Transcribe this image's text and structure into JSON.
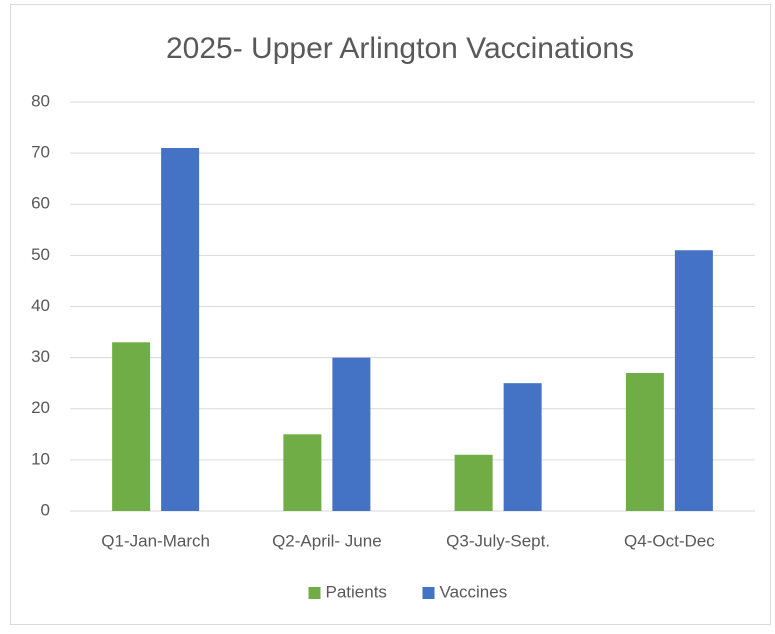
{
  "chart_data": {
    "type": "bar",
    "title": "2025- Upper Arlington Vaccinations",
    "categories": [
      "Q1-Jan-March",
      "Q2-April- June",
      "Q3-July-Sept.",
      "Q4-Oct-Dec"
    ],
    "series": [
      {
        "name": "Patients",
        "color": "#70ad47",
        "values": [
          33,
          15,
          11,
          27
        ]
      },
      {
        "name": "Vaccines",
        "color": "#4472c4",
        "values": [
          71,
          30,
          25,
          51
        ]
      }
    ],
    "ylim": [
      0,
      80
    ],
    "yticks": [
      0,
      10,
      20,
      30,
      40,
      50,
      60,
      70,
      80
    ],
    "grid": true,
    "legend": "bottom"
  }
}
